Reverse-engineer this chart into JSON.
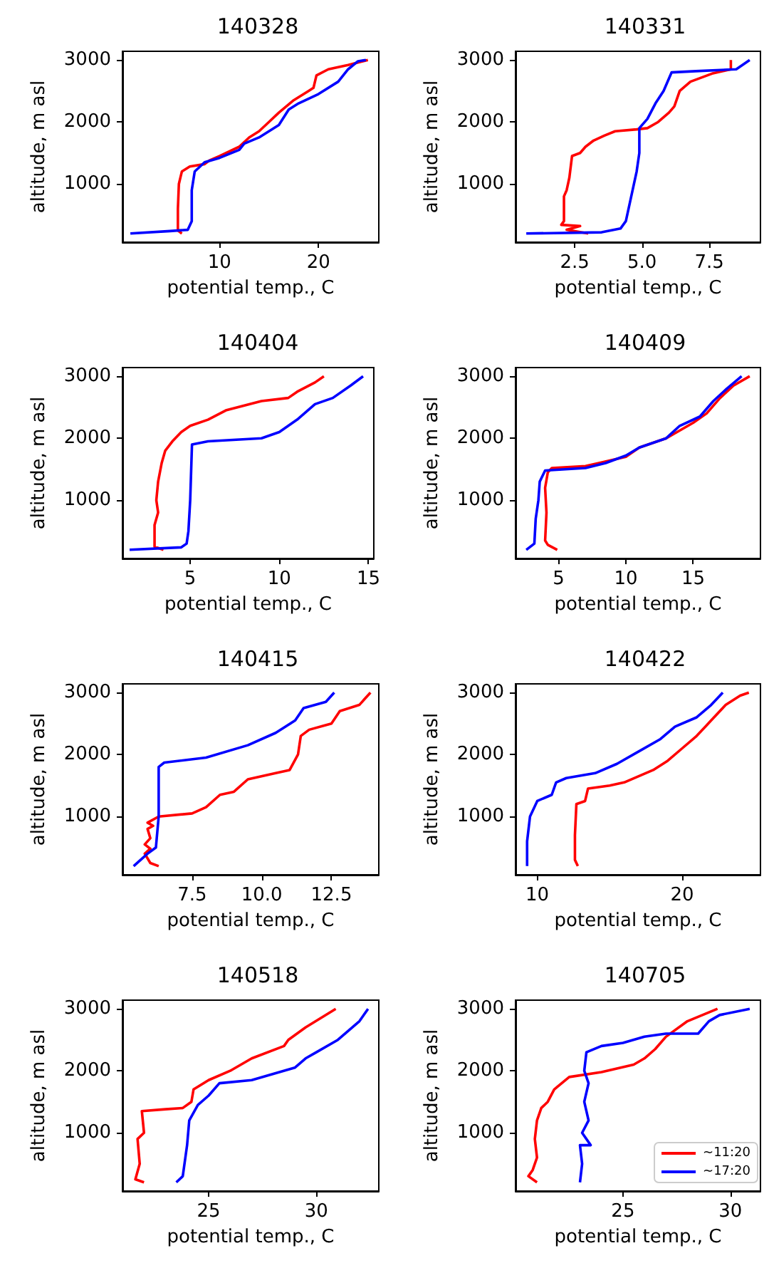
{
  "chart_data": [
    {
      "type": "line",
      "title": "140328",
      "xlabel": "potential temp., C",
      "ylabel": "altitude, m asl",
      "xlim": [
        0.2,
        26.1
      ],
      "xticks": [
        10,
        20
      ],
      "ylim": [
        60,
        3140
      ],
      "yticks": [
        1000,
        2000,
        3000
      ],
      "grid": false,
      "marker": "none",
      "line_style": "solid",
      "series": [
        {
          "color": "#ff0000",
          "x": [
            6.2,
            5.8,
            5.8,
            5.9,
            6.2,
            7,
            8.5,
            9,
            10,
            12,
            13,
            14,
            15,
            16,
            17.5,
            19,
            19.5,
            19.8,
            21,
            23,
            25
          ],
          "values": [
            200,
            250,
            600,
            1000,
            1200,
            1280,
            1320,
            1380,
            1450,
            1600,
            1750,
            1850,
            2000,
            2150,
            2350,
            2500,
            2550,
            2750,
            2850,
            2920,
            3000
          ]
        },
        {
          "color": "#0000ff",
          "x": [
            1,
            5,
            6.8,
            7.2,
            7.2,
            7.5,
            8.5,
            10,
            12,
            12.5,
            14,
            16,
            17,
            18,
            20,
            22,
            23,
            24,
            24.8
          ],
          "values": [
            200,
            240,
            260,
            400,
            900,
            1200,
            1350,
            1420,
            1550,
            1650,
            1750,
            1950,
            2200,
            2300,
            2450,
            2650,
            2850,
            2980,
            3000
          ]
        }
      ]
    },
    {
      "type": "line",
      "title": "140331",
      "xlabel": "potential temp., C",
      "ylabel": "altitude, m asl",
      "xlim": [
        0.3,
        9.4
      ],
      "xticks": [
        2.5,
        {
          "value": 5,
          "label": "5.0"
        },
        7.5
      ],
      "ylim": [
        60,
        3140
      ],
      "yticks": [
        1000,
        2000,
        3000
      ],
      "grid": false,
      "marker": "none",
      "line_style": "solid",
      "series": [
        {
          "color": "#ff0000",
          "x": [
            3.0,
            2.2,
            2.7,
            2.0,
            2.1,
            2.1,
            2.2,
            2.3,
            2.4,
            2.7,
            2.9,
            3.2,
            3.6,
            4.0,
            4.8,
            5.2,
            5.6,
            6.0,
            6.2,
            6.4,
            6.8,
            7.6,
            8.3,
            8.3
          ],
          "values": [
            200,
            260,
            320,
            340,
            400,
            800,
            900,
            1100,
            1450,
            1500,
            1600,
            1700,
            1780,
            1850,
            1880,
            1900,
            2000,
            2150,
            2250,
            2500,
            2650,
            2780,
            2850,
            3000
          ]
        },
        {
          "color": "#0000ff",
          "x": [
            0.7,
            3.5,
            4.2,
            4.4,
            4.6,
            4.8,
            4.9,
            4.9,
            5.2,
            5.5,
            5.8,
            6.1,
            7,
            8.5,
            9.0
          ],
          "values": [
            200,
            220,
            280,
            400,
            800,
            1200,
            1500,
            1900,
            2050,
            2300,
            2500,
            2800,
            2820,
            2850,
            3000
          ]
        }
      ]
    },
    {
      "type": "line",
      "title": "140404",
      "xlabel": "potential temp., C",
      "ylabel": "altitude, m asl",
      "xlim": [
        1.2,
        15.3
      ],
      "xticks": [
        5,
        10,
        15
      ],
      "ylim": [
        60,
        3140
      ],
      "yticks": [
        1000,
        2000,
        3000
      ],
      "grid": false,
      "marker": "none",
      "line_style": "solid",
      "series": [
        {
          "color": "#ff0000",
          "x": [
            3.5,
            3.0,
            3.0,
            3.2,
            3.1,
            3.2,
            3.4,
            3.6,
            4,
            4.5,
            5,
            6,
            7,
            9,
            10.5,
            11,
            12,
            12.5
          ],
          "values": [
            200,
            250,
            600,
            800,
            1000,
            1300,
            1600,
            1800,
            1950,
            2100,
            2200,
            2300,
            2450,
            2600,
            2650,
            2750,
            2900,
            3000
          ]
        },
        {
          "color": "#0000ff",
          "x": [
            1.6,
            4.5,
            4.8,
            4.9,
            5.0,
            5.1,
            6,
            9,
            10,
            11,
            12,
            13,
            14,
            14.7
          ],
          "values": [
            200,
            240,
            300,
            500,
            1000,
            1900,
            1950,
            2000,
            2100,
            2300,
            2550,
            2650,
            2850,
            3000
          ]
        }
      ]
    },
    {
      "type": "line",
      "title": "140409",
      "xlabel": "potential temp., C",
      "ylabel": "altitude, m asl",
      "xlim": [
        1.8,
        20.0
      ],
      "xticks": [
        5,
        10,
        15
      ],
      "ylim": [
        60,
        3140
      ],
      "yticks": [
        1000,
        2000,
        3000
      ],
      "grid": false,
      "marker": "none",
      "line_style": "solid",
      "series": [
        {
          "color": "#ff0000",
          "x": [
            4.9,
            4.2,
            4.0,
            4.1,
            4.0,
            4.2,
            4.5,
            7,
            8,
            10,
            11,
            13,
            15,
            16,
            17,
            18,
            19.2
          ],
          "values": [
            200,
            280,
            350,
            800,
            1200,
            1450,
            1520,
            1550,
            1600,
            1700,
            1850,
            2000,
            2250,
            2400,
            2650,
            2850,
            3000
          ]
        },
        {
          "color": "#0000ff",
          "x": [
            2.6,
            3.2,
            3.3,
            3.5,
            3.6,
            4,
            7,
            8.5,
            10,
            11,
            13,
            14,
            15.5,
            16.5,
            17.5,
            18.6
          ],
          "values": [
            200,
            300,
            700,
            1000,
            1300,
            1480,
            1520,
            1600,
            1720,
            1850,
            2000,
            2200,
            2350,
            2600,
            2800,
            3000
          ]
        }
      ]
    },
    {
      "type": "line",
      "title": "140415",
      "xlabel": "potential temp., C",
      "ylabel": "altitude, m asl",
      "xlim": [
        5.0,
        14.2
      ],
      "xticks": [
        7.5,
        {
          "value": 10,
          "label": "10.0"
        },
        12.5
      ],
      "ylim": [
        60,
        3140
      ],
      "yticks": [
        1000,
        2000,
        3000
      ],
      "grid": false,
      "marker": "none",
      "line_style": "solid",
      "series": [
        {
          "color": "#ff0000",
          "x": [
            6.3,
            6.0,
            5.8,
            6.0,
            5.8,
            6.0,
            5.9,
            6.1,
            5.9,
            6.3,
            7.5,
            8,
            8.5,
            9,
            9.5,
            10.5,
            11,
            11.3,
            11.4,
            11.7,
            12.5,
            12.8,
            13.5,
            13.9
          ],
          "values": [
            200,
            250,
            400,
            480,
            550,
            650,
            800,
            850,
            900,
            1000,
            1050,
            1150,
            1350,
            1400,
            1600,
            1700,
            1750,
            2000,
            2300,
            2400,
            2500,
            2700,
            2800,
            3000
          ]
        },
        {
          "color": "#0000ff",
          "x": [
            5.4,
            5.9,
            6.2,
            6.3,
            6.3,
            6.5,
            8,
            9.5,
            10.5,
            11.2,
            11.5,
            12.3,
            12.6
          ],
          "values": [
            200,
            400,
            500,
            1000,
            1800,
            1870,
            1950,
            2150,
            2350,
            2550,
            2750,
            2850,
            3000
          ]
        }
      ]
    },
    {
      "type": "line",
      "title": "140422",
      "xlabel": "potential temp., C",
      "ylabel": "altitude, m asl",
      "xlim": [
        8.5,
        25.4
      ],
      "xticks": [
        10,
        20
      ],
      "ylim": [
        60,
        3140
      ],
      "yticks": [
        1000,
        2000,
        3000
      ],
      "grid": false,
      "marker": "none",
      "line_style": "solid",
      "series": [
        {
          "color": "#ff0000",
          "x": [
            12.8,
            12.6,
            12.6,
            12.7,
            13.3,
            13.5,
            15,
            16,
            17,
            18,
            19,
            20,
            21,
            22,
            23,
            24,
            24.6
          ],
          "values": [
            200,
            300,
            700,
            1200,
            1250,
            1450,
            1500,
            1550,
            1650,
            1750,
            1900,
            2100,
            2300,
            2550,
            2800,
            2950,
            3000
          ]
        },
        {
          "color": "#0000ff",
          "x": [
            9.3,
            9.3,
            9.5,
            10,
            11,
            11.3,
            12,
            14,
            15.5,
            17,
            18.5,
            19.5,
            21,
            22,
            22.8
          ],
          "values": [
            200,
            600,
            1000,
            1250,
            1350,
            1550,
            1620,
            1700,
            1850,
            2050,
            2250,
            2450,
            2600,
            2800,
            3000
          ]
        }
      ]
    },
    {
      "type": "line",
      "title": "140518",
      "xlabel": "potential temp., C",
      "ylabel": "altitude, m asl",
      "xlim": [
        21.0,
        32.9
      ],
      "xticks": [
        25,
        30
      ],
      "ylim": [
        60,
        3140
      ],
      "yticks": [
        1000,
        2000,
        3000
      ],
      "grid": false,
      "marker": "none",
      "line_style": "solid",
      "series": [
        {
          "color": "#ff0000",
          "x": [
            22,
            21.6,
            21.8,
            21.7,
            22,
            21.9,
            23,
            23.8,
            24.2,
            24.3,
            25,
            26,
            27,
            28.5,
            28.7,
            29.5,
            30.9
          ],
          "values": [
            200,
            250,
            500,
            900,
            1000,
            1350,
            1380,
            1400,
            1500,
            1700,
            1850,
            2000,
            2200,
            2400,
            2500,
            2700,
            3000
          ]
        },
        {
          "color": "#0000ff",
          "x": [
            23.5,
            23.8,
            24,
            24.1,
            24.5,
            25,
            25.5,
            27,
            28,
            29,
            29.5,
            30,
            31,
            32,
            32.4
          ],
          "values": [
            200,
            300,
            800,
            1200,
            1450,
            1600,
            1800,
            1850,
            1950,
            2050,
            2200,
            2300,
            2500,
            2800,
            3000
          ]
        }
      ]
    },
    {
      "type": "line",
      "title": "140705",
      "xlabel": "potential temp., C",
      "ylabel": "altitude, m asl",
      "xlim": [
        20.0,
        31.4
      ],
      "xticks": [
        25,
        30
      ],
      "ylim": [
        60,
        3140
      ],
      "yticks": [
        1000,
        2000,
        3000
      ],
      "grid": false,
      "marker": "none",
      "line_style": "solid",
      "legend": "bottom right",
      "series": [
        {
          "name": "~11:20",
          "color": "#ff0000",
          "x": [
            21,
            20.6,
            20.8,
            21.0,
            20.9,
            21.0,
            21.2,
            21.5,
            21.8,
            22.5,
            24,
            25.5,
            26,
            26.5,
            27,
            28,
            29.4
          ],
          "values": [
            200,
            300,
            400,
            600,
            900,
            1200,
            1400,
            1500,
            1700,
            1900,
            1980,
            2100,
            2200,
            2350,
            2550,
            2800,
            3000
          ]
        },
        {
          "name": "~17:20",
          "color": "#0000ff",
          "x": [
            23,
            23.1,
            23,
            23.5,
            23.1,
            23.4,
            23.2,
            23.4,
            23.2,
            23.3,
            24,
            25,
            26,
            27,
            28.5,
            29,
            29.5,
            30.9
          ],
          "values": [
            200,
            500,
            800,
            800,
            1000,
            1200,
            1500,
            1800,
            2000,
            2300,
            2400,
            2450,
            2550,
            2600,
            2600,
            2800,
            2900,
            3000
          ]
        }
      ]
    }
  ]
}
